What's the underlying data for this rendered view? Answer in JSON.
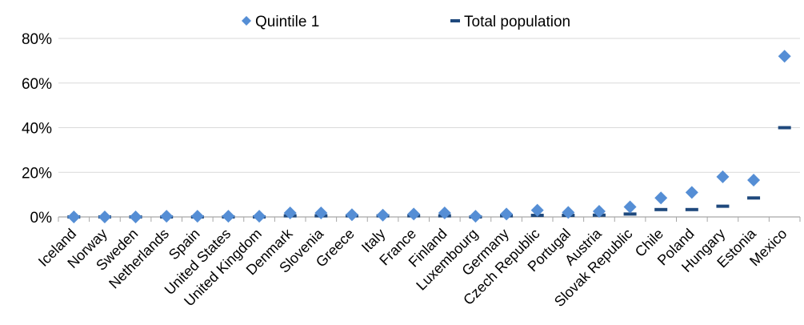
{
  "chart_data": {
    "type": "scatter",
    "categories": [
      "Iceland",
      "Norway",
      "Sweden",
      "Netherlands",
      "Spain",
      "United States",
      "United Kingdom",
      "Denmark",
      "Slovenia",
      "Greece",
      "Italy",
      "France",
      "Finland",
      "Luxembourg",
      "Germany",
      "Czech Republic",
      "Portugal",
      "Austria",
      "Slovak Republic",
      "Chile",
      "Poland",
      "Hungary",
      "Estonia",
      "Mexico"
    ],
    "series": [
      {
        "name": "Quintile 1",
        "marker": "diamond",
        "color": "#558ED5",
        "values": [
          0.0,
          0.0,
          0.0,
          0.3,
          0.3,
          0.3,
          0.3,
          1.8,
          1.8,
          1.0,
          0.8,
          1.3,
          1.8,
          0.3,
          1.3,
          3.0,
          2.0,
          2.5,
          4.5,
          8.5,
          11.0,
          18.0,
          16.5,
          72.0
        ]
      },
      {
        "name": "Total population",
        "marker": "dash",
        "color": "#1F497D",
        "values": [
          0.0,
          0.0,
          0.0,
          0.0,
          0.0,
          0.0,
          0.0,
          0.5,
          0.5,
          0.5,
          0.5,
          0.5,
          0.5,
          0.0,
          0.5,
          0.7,
          0.7,
          0.8,
          1.3,
          3.3,
          3.3,
          4.8,
          8.5,
          40.0
        ]
      }
    ],
    "yticks": [
      "0%",
      "20%",
      "40%",
      "60%",
      "80%"
    ],
    "ylim": [
      0,
      80
    ],
    "grid": "horizontal",
    "legend": "top-center"
  }
}
